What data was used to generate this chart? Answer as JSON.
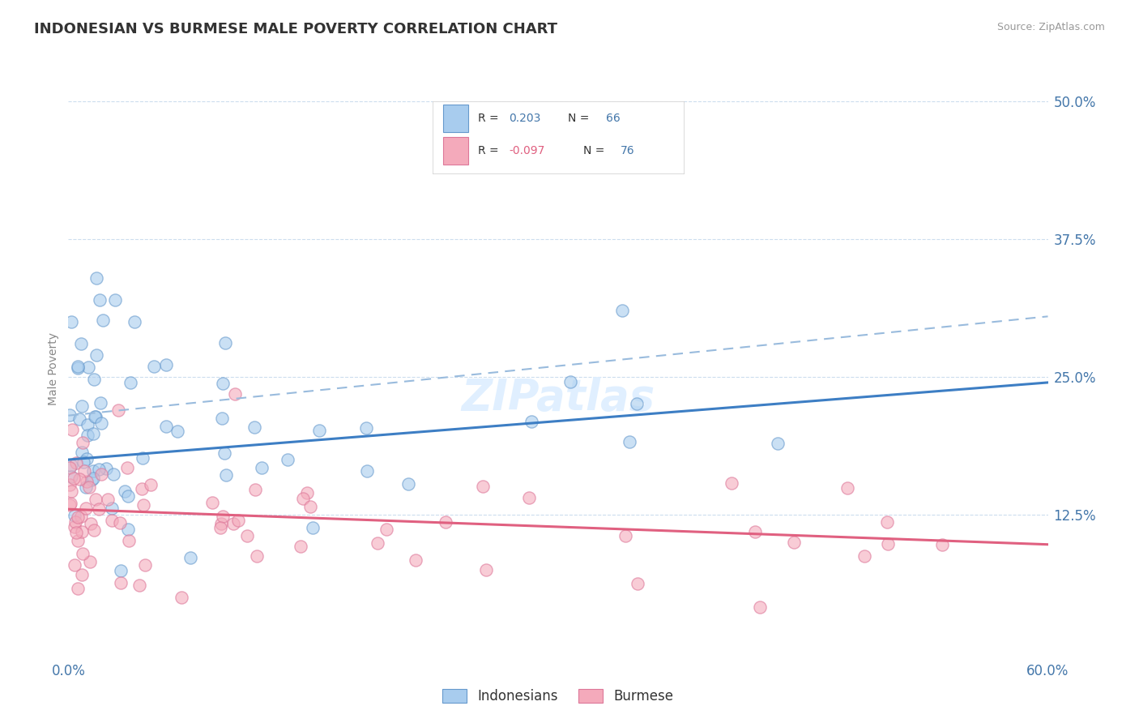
{
  "title": "INDONESIAN VS BURMESE MALE POVERTY CORRELATION CHART",
  "source": "Source: ZipAtlas.com",
  "ylabel": "Male Poverty",
  "xlim": [
    0.0,
    0.6
  ],
  "ylim": [
    -0.005,
    0.52
  ],
  "ytick_positions": [
    0.125,
    0.25,
    0.375,
    0.5
  ],
  "ytick_labels": [
    "12.5%",
    "25.0%",
    "37.5%",
    "50.0%"
  ],
  "xtick_positions": [
    0.0,
    0.6
  ],
  "xtick_labels": [
    "0.0%",
    "60.0%"
  ],
  "r_indonesian": 0.203,
  "n_indonesian": 66,
  "r_burmese": -0.097,
  "n_burmese": 76,
  "color_indonesian_fill": "#A8CCEE",
  "color_indonesian_edge": "#6699CC",
  "color_burmese_fill": "#F4AABB",
  "color_burmese_edge": "#DD7799",
  "color_line_indonesian": "#3D7EC4",
  "color_line_burmese": "#E06080",
  "color_dashed": "#99BBDD",
  "color_axis_labels": "#4477AA",
  "color_grid": "#CCDDEE",
  "background_color": "#FFFFFF",
  "title_fontsize": 13,
  "title_color": "#333333",
  "legend_labels": [
    "Indonesians",
    "Burmese"
  ],
  "ind_line_x0": 0.0,
  "ind_line_y0": 0.175,
  "ind_line_x1": 0.6,
  "ind_line_y1": 0.245,
  "bur_line_x0": 0.0,
  "bur_line_y0": 0.13,
  "bur_line_x1": 0.6,
  "bur_line_y1": 0.098,
  "dash_line_x0": 0.0,
  "dash_line_y0": 0.215,
  "dash_line_x1": 0.6,
  "dash_line_y1": 0.305
}
